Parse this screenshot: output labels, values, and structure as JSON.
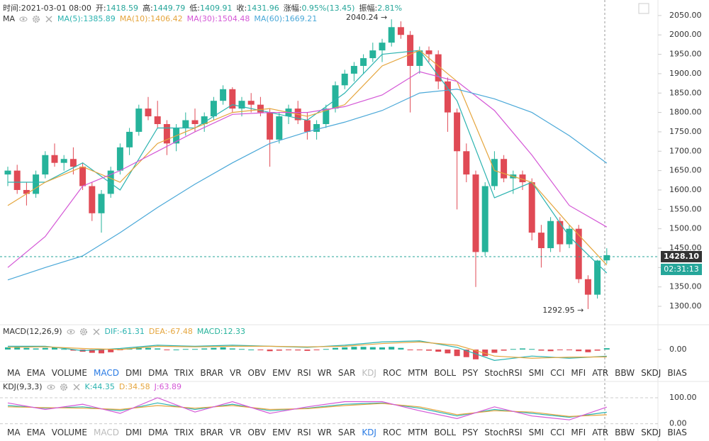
{
  "header": [
    {
      "label": "时间:",
      "value": "2021-03-01 08:00"
    },
    {
      "label": "开:",
      "value": 1418.59
    },
    {
      "label": "高:",
      "value": 1449.79
    },
    {
      "label": "低:",
      "value": 1409.91
    },
    {
      "label": "收:",
      "value": 1431.96
    },
    {
      "label": "涨幅:",
      "value": "0.95%(13.45)"
    },
    {
      "label": "振幅:",
      "value": "2.81%"
    }
  ],
  "tabs": [
    "MA",
    "EMA",
    "VOLUME",
    "MACD",
    "DMI",
    "DMA",
    "TRIX",
    "BRAR",
    "VR",
    "OBV",
    "EMV",
    "RSI",
    "WR",
    "SAR",
    "KDJ",
    "ROC",
    "MTM",
    "BOLL",
    "PSY",
    "StochRSI",
    "SMI",
    "CCI",
    "MFI",
    "ATR",
    "BBW",
    "SKDJ",
    "BIAS"
  ],
  "chart_data": [
    {
      "type": "candlestick",
      "title": "MA",
      "up_color": "#26b39b",
      "down_color": "#e04a55",
      "ylim": [
        1258,
        2090
      ],
      "yticks": [
        {
          "value": 2050,
          "label": "2050.00"
        },
        {
          "value": 2000,
          "label": "2000.00"
        },
        {
          "value": 1950,
          "label": "1950.00"
        },
        {
          "value": 1900,
          "label": "1900.00"
        },
        {
          "value": 1850,
          "label": "1850.00"
        },
        {
          "value": 1800,
          "label": "1800.00"
        },
        {
          "value": 1750,
          "label": "1750.00"
        },
        {
          "value": 1700,
          "label": "1700.00"
        },
        {
          "value": 1650,
          "label": "1650.00"
        },
        {
          "value": 1600,
          "label": "1600.00"
        },
        {
          "value": 1550,
          "label": "1550.00"
        },
        {
          "value": 1500,
          "label": "1500.00"
        },
        {
          "value": 1450,
          "label": "1450.00"
        },
        {
          "value": 1400,
          "label": "1400.00"
        },
        {
          "value": 1350,
          "label": "1350.00"
        },
        {
          "value": 1300,
          "label": "1300.00"
        }
      ],
      "ohlc": [
        [
          1640,
          1660,
          1610,
          1650
        ],
        [
          1650,
          1665,
          1590,
          1600
        ],
        [
          1600,
          1620,
          1560,
          1590
        ],
        [
          1590,
          1650,
          1580,
          1640
        ],
        [
          1640,
          1700,
          1630,
          1690
        ],
        [
          1690,
          1720,
          1660,
          1670
        ],
        [
          1670,
          1690,
          1650,
          1680
        ],
        [
          1680,
          1710,
          1640,
          1660
        ],
        [
          1660,
          1670,
          1600,
          1610
        ],
        [
          1610,
          1620,
          1520,
          1540
        ],
        [
          1540,
          1600,
          1490,
          1590
        ],
        [
          1590,
          1660,
          1580,
          1650
        ],
        [
          1650,
          1720,
          1640,
          1710
        ],
        [
          1710,
          1760,
          1690,
          1750
        ],
        [
          1750,
          1820,
          1740,
          1810
        ],
        [
          1810,
          1840,
          1780,
          1790
        ],
        [
          1790,
          1830,
          1760,
          1770
        ],
        [
          1770,
          1780,
          1690,
          1720
        ],
        [
          1720,
          1770,
          1700,
          1760
        ],
        [
          1760,
          1800,
          1740,
          1780
        ],
        [
          1780,
          1810,
          1750,
          1770
        ],
        [
          1770,
          1800,
          1750,
          1790
        ],
        [
          1790,
          1840,
          1780,
          1830
        ],
        [
          1830,
          1870,
          1820,
          1860
        ],
        [
          1860,
          1865,
          1800,
          1810
        ],
        [
          1810,
          1840,
          1790,
          1830
        ],
        [
          1830,
          1850,
          1800,
          1820
        ],
        [
          1820,
          1840,
          1790,
          1800
        ],
        [
          1800,
          1810,
          1660,
          1730
        ],
        [
          1730,
          1800,
          1720,
          1790
        ],
        [
          1790,
          1820,
          1770,
          1810
        ],
        [
          1810,
          1830,
          1770,
          1780
        ],
        [
          1780,
          1800,
          1730,
          1750
        ],
        [
          1750,
          1780,
          1730,
          1770
        ],
        [
          1770,
          1820,
          1760,
          1810
        ],
        [
          1810,
          1880,
          1800,
          1870
        ],
        [
          1870,
          1910,
          1860,
          1900
        ],
        [
          1900,
          1930,
          1880,
          1920
        ],
        [
          1920,
          1950,
          1900,
          1940
        ],
        [
          1940,
          1980,
          1930,
          1960
        ],
        [
          1960,
          1990,
          1930,
          1980
        ],
        [
          1980,
          2040.24,
          1970,
          2020
        ],
        [
          2020,
          2035,
          1990,
          2000
        ],
        [
          2000,
          2010,
          1800,
          1920
        ],
        [
          1920,
          1970,
          1900,
          1960
        ],
        [
          1960,
          1970,
          1930,
          1950
        ],
        [
          1950,
          1960,
          1860,
          1880
        ],
        [
          1880,
          1890,
          1750,
          1800
        ],
        [
          1800,
          1810,
          1550,
          1700
        ],
        [
          1700,
          1720,
          1620,
          1640
        ],
        [
          1640,
          1650,
          1350,
          1440
        ],
        [
          1440,
          1620,
          1430,
          1610
        ],
        [
          1610,
          1700,
          1600,
          1680
        ],
        [
          1680,
          1690,
          1620,
          1630
        ],
        [
          1630,
          1650,
          1590,
          1640
        ],
        [
          1640,
          1650,
          1600,
          1620
        ],
        [
          1620,
          1630,
          1470,
          1490
        ],
        [
          1490,
          1510,
          1400,
          1450
        ],
        [
          1450,
          1530,
          1440,
          1520
        ],
        [
          1520,
          1530,
          1440,
          1460
        ],
        [
          1460,
          1510,
          1450,
          1500
        ],
        [
          1500,
          1510,
          1360,
          1370
        ],
        [
          1370,
          1380,
          1292.95,
          1330
        ],
        [
          1330,
          1420,
          1320,
          1418
        ],
        [
          1418.59,
          1449.79,
          1409.91,
          1431.96
        ]
      ],
      "series": [
        {
          "name": "MA(5):1385.89",
          "color": "#2bb3b0",
          "x": [
            0,
            4,
            8,
            12,
            16,
            20,
            24,
            28,
            32,
            36,
            40,
            44,
            48,
            52,
            56,
            60,
            64
          ],
          "values": [
            1620,
            1620,
            1670,
            1600,
            1760,
            1760,
            1820,
            1800,
            1780,
            1850,
            1950,
            1960,
            1830,
            1580,
            1620,
            1480,
            1385.89
          ]
        },
        {
          "name": "MA(10):1406.42",
          "color": "#e5a53d",
          "x": [
            0,
            4,
            8,
            12,
            16,
            20,
            24,
            28,
            32,
            36,
            40,
            44,
            48,
            52,
            56,
            60,
            64
          ],
          "values": [
            1560,
            1620,
            1660,
            1620,
            1720,
            1760,
            1800,
            1810,
            1790,
            1820,
            1920,
            1960,
            1880,
            1650,
            1620,
            1510,
            1406.42
          ]
        },
        {
          "name": "MA(30):1504.48",
          "color": "#d457d6",
          "x": [
            0,
            4,
            8,
            12,
            16,
            20,
            24,
            28,
            32,
            36,
            40,
            44,
            48,
            52,
            56,
            60,
            64
          ],
          "values": [
            1400,
            1480,
            1610,
            1650,
            1700,
            1750,
            1795,
            1800,
            1800,
            1815,
            1845,
            1905,
            1880,
            1805,
            1690,
            1560,
            1504.48
          ]
        },
        {
          "name": "MA(60):1669.21",
          "color": "#4aa8d8",
          "x": [
            0,
            4,
            8,
            12,
            16,
            20,
            24,
            28,
            32,
            36,
            40,
            44,
            48,
            52,
            56,
            60,
            64
          ],
          "values": [
            1368,
            1400,
            1430,
            1490,
            1555,
            1615,
            1670,
            1720,
            1750,
            1775,
            1805,
            1850,
            1860,
            1835,
            1800,
            1740,
            1669.21
          ]
        }
      ],
      "annotations": [
        "2040.24 →",
        "1292.95 →"
      ],
      "current_price": {
        "value": 1428.1,
        "label": "1428.10"
      },
      "countdown": "02:31:13"
    },
    {
      "type": "macd",
      "title": "MACD(12,26,9)",
      "active_tab": "MACD",
      "ylim": [
        -150,
        150
      ],
      "yticks": [
        {
          "value": 0,
          "label": "0.00"
        }
      ],
      "up_color": "#26b39b",
      "down_color": "#e04a55",
      "histogram": {
        "name": "MACD:12.33",
        "color": "#26b39b",
        "values": [
          20,
          25,
          15,
          10,
          15,
          20,
          5,
          -10,
          -20,
          -30,
          -35,
          -25,
          -5,
          10,
          20,
          15,
          10,
          -5,
          0,
          5,
          5,
          10,
          15,
          20,
          10,
          5,
          0,
          -5,
          -15,
          -10,
          -5,
          -8,
          -12,
          -5,
          5,
          15,
          20,
          25,
          25,
          22,
          20,
          25,
          15,
          -5,
          -5,
          -10,
          -20,
          -35,
          -60,
          -70,
          -90,
          -60,
          -30,
          -10,
          5,
          10,
          5,
          -10,
          -15,
          -5,
          -5,
          -15,
          -25,
          -10,
          12.33
        ]
      },
      "series": [
        {
          "name": "DIF:-61.31",
          "color": "#2bb3b0",
          "x": [
            0,
            4,
            8,
            12,
            16,
            20,
            24,
            28,
            32,
            36,
            40,
            44,
            48,
            52,
            56,
            60,
            64
          ],
          "values": [
            30,
            30,
            -10,
            10,
            40,
            30,
            40,
            30,
            20,
            40,
            70,
            80,
            20,
            -100,
            -60,
            -80,
            -61.31
          ]
        },
        {
          "name": "DEA:-67.48",
          "color": "#e5a53d",
          "x": [
            0,
            4,
            8,
            12,
            16,
            20,
            24,
            28,
            32,
            36,
            40,
            44,
            48,
            52,
            56,
            60,
            64
          ],
          "values": [
            20,
            25,
            10,
            0,
            30,
            25,
            30,
            30,
            25,
            30,
            55,
            70,
            40,
            -60,
            -80,
            -70,
            -67.48
          ]
        }
      ]
    },
    {
      "type": "line",
      "title": "KDJ(9,3,3)",
      "active_tab": "KDJ",
      "ylim": [
        -20,
        130
      ],
      "yticks": [
        {
          "value": 100,
          "label": "100.00"
        },
        {
          "value": 0,
          "label": "0.00"
        }
      ],
      "series": [
        {
          "name": "K:44.35",
          "color": "#2bb3b0",
          "x": [
            0,
            4,
            8,
            12,
            16,
            20,
            24,
            28,
            32,
            36,
            40,
            44,
            48,
            52,
            56,
            60,
            64
          ],
          "values": [
            70,
            60,
            65,
            50,
            80,
            55,
            75,
            50,
            60,
            75,
            80,
            60,
            30,
            55,
            40,
            25,
            44.35
          ]
        },
        {
          "name": "D:34.58",
          "color": "#e5a53d",
          "x": [
            0,
            4,
            8,
            12,
            16,
            20,
            24,
            28,
            32,
            36,
            40,
            44,
            48,
            52,
            56,
            60,
            64
          ],
          "values": [
            65,
            62,
            60,
            55,
            70,
            60,
            70,
            55,
            58,
            70,
            78,
            65,
            35,
            50,
            45,
            28,
            34.58
          ]
        },
        {
          "name": "J:63.89",
          "color": "#d457d6",
          "x": [
            0,
            4,
            8,
            12,
            16,
            20,
            24,
            28,
            32,
            36,
            40,
            44,
            48,
            52,
            56,
            60,
            64
          ],
          "values": [
            80,
            55,
            75,
            40,
            100,
            45,
            85,
            40,
            65,
            85,
            85,
            50,
            20,
            65,
            30,
            15,
            63.89
          ]
        }
      ]
    }
  ]
}
